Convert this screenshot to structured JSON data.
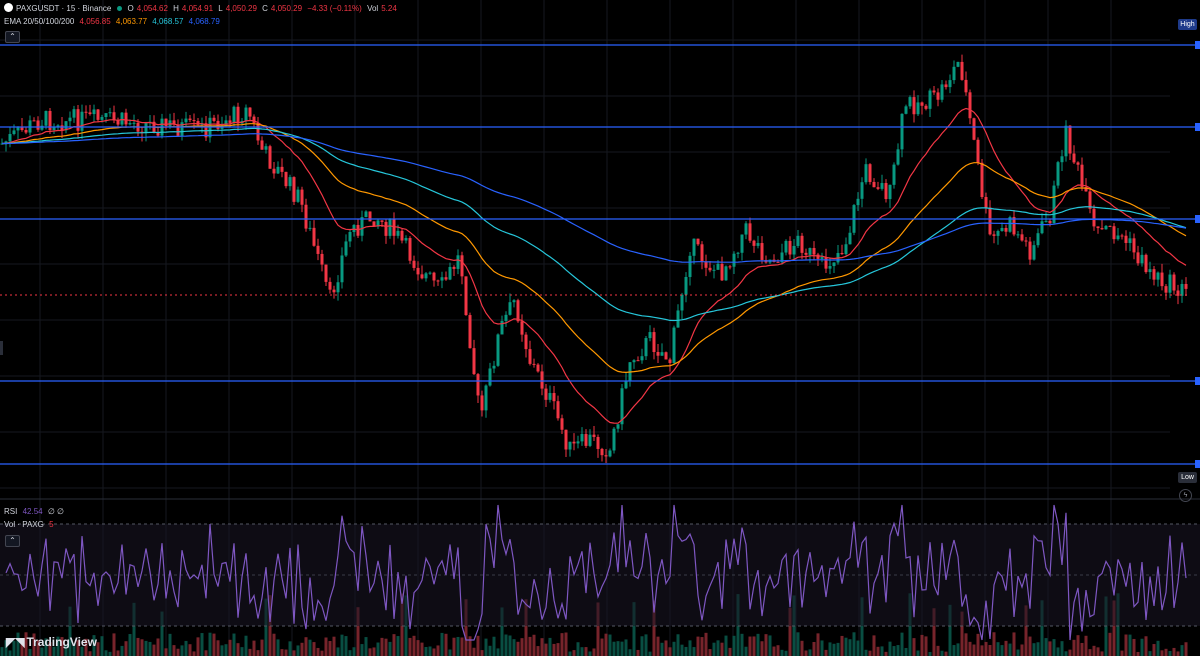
{
  "symbol": {
    "title": "PAXGUSDT · 15 · Binance",
    "ohlc": [
      {
        "label": "O",
        "value": "4,054.62"
      },
      {
        "label": "H",
        "value": "4,054.91"
      },
      {
        "label": "L",
        "value": "4,050.29"
      },
      {
        "label": "C",
        "value": "4,050.29"
      }
    ],
    "change": "−4.33 (−0.11%)",
    "vol_label": "Vol",
    "vol_value": "5.24"
  },
  "ema": {
    "label": "EMA 20/50/100/200",
    "values": [
      "4,056.85",
      "4,063.77",
      "4,068.57",
      "4,068.79"
    ],
    "colors": [
      "#f23645",
      "#ff9800",
      "#26c6da",
      "#2962ff"
    ]
  },
  "rsi": {
    "label": "RSI",
    "value": "42.54",
    "extra": "∅ ∅",
    "color": "#7e57c2"
  },
  "vol_indicator": {
    "label": "Vol · PAXG",
    "value": "5"
  },
  "badges": {
    "high": "High",
    "low": "Low"
  },
  "icons": {
    "collapse": "chevron-up-icon",
    "lightning": "lightning-icon",
    "logo": "tradingview-logo-icon"
  },
  "branding": {
    "name": "TradingView"
  },
  "colors": {
    "up": "#089981",
    "down": "#f23645",
    "level_line": "#2962ff",
    "current_price_line": "#f23645",
    "rsi": "#7e57c2"
  }
}
